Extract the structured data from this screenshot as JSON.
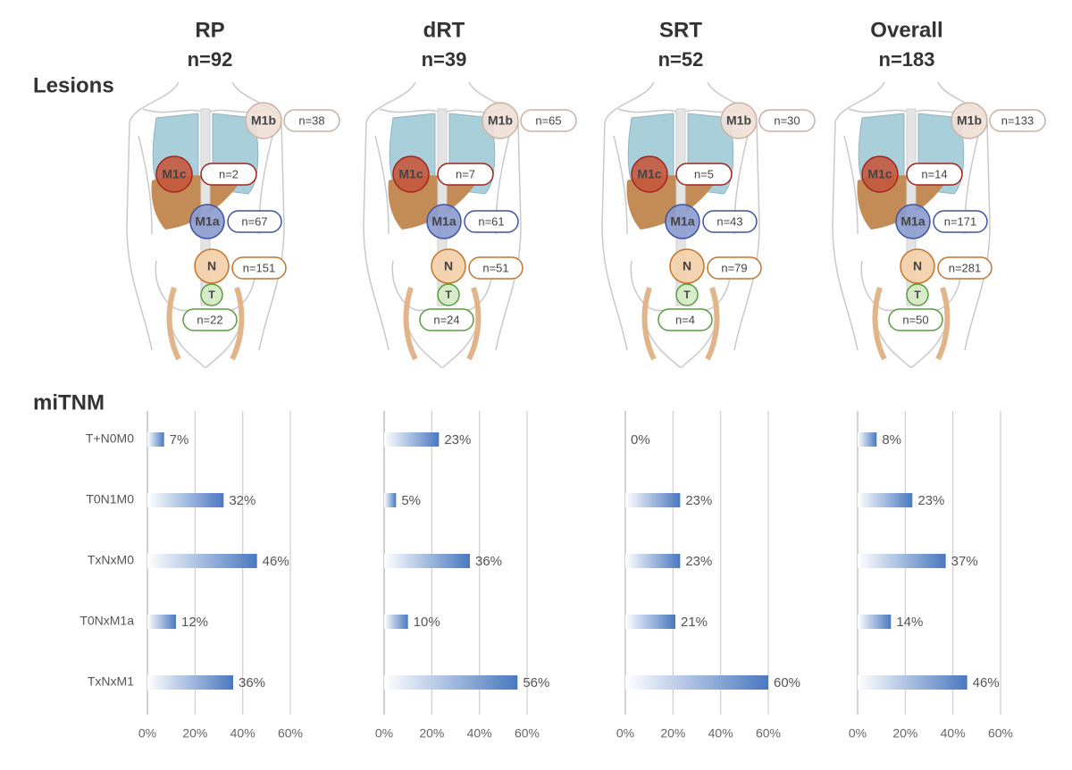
{
  "row_labels": {
    "lesions": "Lesions",
    "mitnm": "miTNM"
  },
  "sites": [
    {
      "label": "M1b",
      "color": "#efdfd6",
      "stroke": "#c9b2a4"
    },
    {
      "label": "M1c",
      "color": "#c4583e",
      "stroke": "#a3231f"
    },
    {
      "label": "M1a",
      "color": "#8c9bd0",
      "stroke": "#3f52a3"
    },
    {
      "label": "N",
      "color": "#f3cfa8",
      "stroke": "#c5742c"
    },
    {
      "label": "T",
      "color": "#d3ebc4",
      "stroke": "#5b9b41"
    }
  ],
  "groups": [
    {
      "title": "RP",
      "n": "n=92",
      "lesions": [
        "n=38",
        "n=2",
        "n=67",
        "n=151",
        "n=22"
      ]
    },
    {
      "title": "dRT",
      "n": "n=39",
      "lesions": [
        "n=65",
        "n=7",
        "n=61",
        "n=51",
        "n=24"
      ]
    },
    {
      "title": "SRT",
      "n": "n=52",
      "lesions": [
        "n=30",
        "n=5",
        "n=43",
        "n=79",
        "n=4"
      ]
    },
    {
      "title": "Overall",
      "n": "n=183",
      "lesions": [
        "n=133",
        "n=14",
        "n=171",
        "n=281",
        "n=50"
      ]
    }
  ],
  "chart_data": [
    {
      "type": "bar",
      "orientation": "horizontal",
      "color": "#4a78c0",
      "categories": [
        "T+N0M0",
        "T0N1M0",
        "TxNxM0",
        "T0NxM1a",
        "TxNxM1"
      ],
      "values": [
        7,
        32,
        46,
        12,
        36
      ],
      "value_labels": [
        "7%",
        "32%",
        "46%",
        "12%",
        "36%"
      ],
      "xlim": [
        0,
        60
      ],
      "xticks": [
        {
          "value": 0,
          "label": "0%"
        },
        {
          "value": 20,
          "label": "20%"
        },
        {
          "value": 40,
          "label": "40%"
        },
        {
          "value": 60,
          "label": "60%"
        }
      ],
      "grid": true
    },
    {
      "type": "bar",
      "orientation": "horizontal",
      "color": "#4a78c0",
      "values": [
        23,
        5,
        36,
        10,
        56
      ],
      "value_labels": [
        "23%",
        "5%",
        "36%",
        "10%",
        "56%"
      ],
      "xlim": [
        0,
        60
      ],
      "xticks": [
        {
          "value": 0,
          "label": "0%"
        },
        {
          "value": 20,
          "label": "20%"
        },
        {
          "value": 40,
          "label": "40%"
        },
        {
          "value": 60,
          "label": "60%"
        }
      ],
      "grid": true
    },
    {
      "type": "bar",
      "orientation": "horizontal",
      "color": "#4a78c0",
      "values": [
        0,
        23,
        23,
        21,
        60
      ],
      "value_labels": [
        "0%",
        "23%",
        "23%",
        "21%",
        "60%"
      ],
      "xlim": [
        0,
        60
      ],
      "xticks": [
        {
          "value": 0,
          "label": "0%"
        },
        {
          "value": 20,
          "label": "20%"
        },
        {
          "value": 40,
          "label": "40%"
        },
        {
          "value": 60,
          "label": "60%"
        }
      ],
      "grid": true
    },
    {
      "type": "bar",
      "orientation": "horizontal",
      "color": "#4a78c0",
      "values": [
        8,
        23,
        37,
        14,
        46
      ],
      "value_labels": [
        "8%",
        "23%",
        "37%",
        "14%",
        "46%"
      ],
      "xlim": [
        0,
        60
      ],
      "xticks": [
        {
          "value": 0,
          "label": "0%"
        },
        {
          "value": 20,
          "label": "20%"
        },
        {
          "value": 40,
          "label": "40%"
        },
        {
          "value": 60,
          "label": "60%"
        }
      ],
      "grid": true
    }
  ]
}
